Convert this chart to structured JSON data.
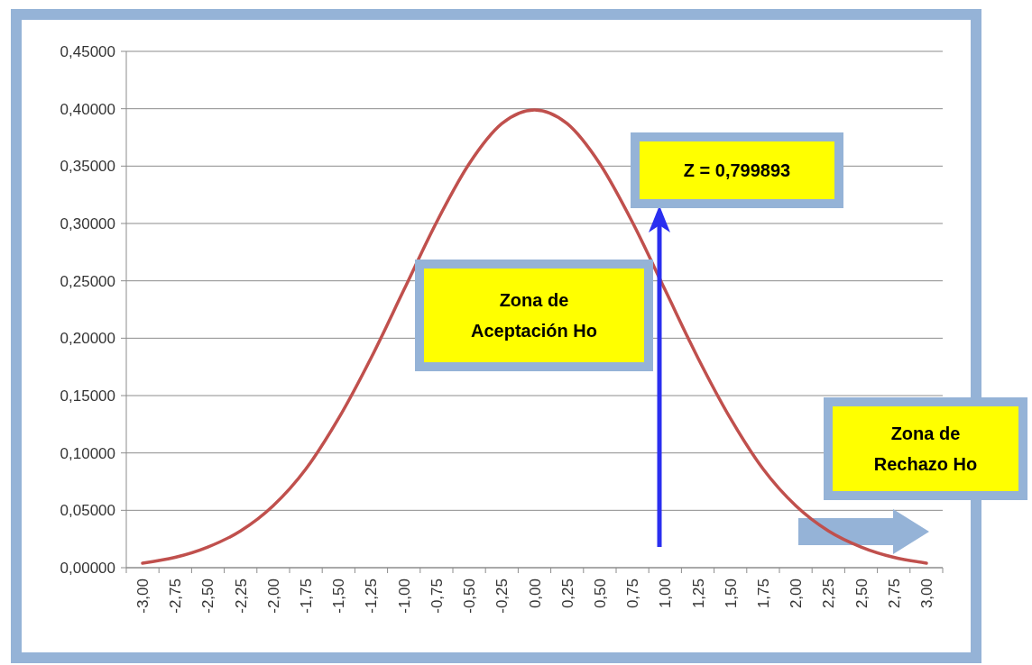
{
  "chart_data": {
    "type": "line",
    "categories": [
      "-3,00",
      "-2,75",
      "-2,50",
      "-2,25",
      "-2,00",
      "-1,75",
      "-1,50",
      "-1,25",
      "-1,00",
      "-0,75",
      "-0,50",
      "-0,25",
      "0,00",
      "0,25",
      "0,50",
      "0,75",
      "1,00",
      "1,25",
      "1,50",
      "1,75",
      "2,00",
      "2,25",
      "2,50",
      "2,75",
      "3,00"
    ],
    "series": [
      {
        "color": "#c0504d",
        "values": [
          0.004,
          0.009,
          0.018,
          0.032,
          0.054,
          0.086,
          0.13,
          0.183,
          0.242,
          0.301,
          0.352,
          0.387,
          0.399,
          0.387,
          0.352,
          0.301,
          0.242,
          0.183,
          0.13,
          0.086,
          0.054,
          0.032,
          0.018,
          0.009,
          0.004
        ]
      }
    ],
    "ylim": [
      0,
      0.45
    ],
    "yticks": [
      {
        "value": 0,
        "label": "0,00000"
      },
      {
        "value": 0.05,
        "label": "0,05000"
      },
      {
        "value": 0.1,
        "label": "0,10000"
      },
      {
        "value": 0.15,
        "label": "0,15000"
      },
      {
        "value": 0.2,
        "label": "0,20000"
      },
      {
        "value": 0.25,
        "label": "0,25000"
      },
      {
        "value": 0.3,
        "label": "0,30000"
      },
      {
        "value": 0.35,
        "label": "0,35000"
      },
      {
        "value": 0.4,
        "label": "0,40000"
      },
      {
        "value": 0.45,
        "label": "0,45000"
      }
    ],
    "grid": "y",
    "annotations": [
      "Z = 0,799893",
      "Zona de Aceptación Ho",
      "Zona de Rechazo Ho"
    ]
  }
}
